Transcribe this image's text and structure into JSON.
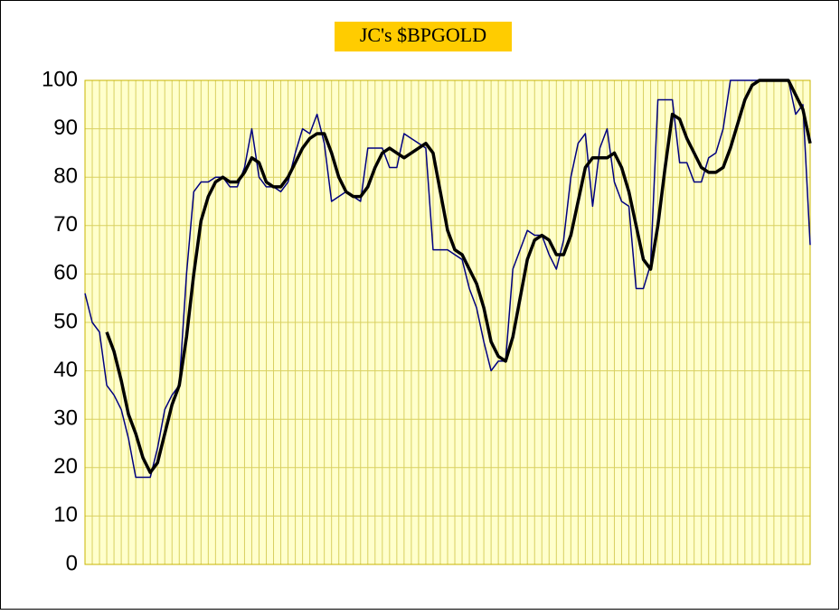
{
  "chart_data": {
    "type": "line",
    "title": "JC's $BPGOLD",
    "categories": [
      null,
      null,
      null,
      null,
      null,
      null,
      null,
      null,
      null,
      null,
      null,
      null,
      null,
      null,
      null,
      null,
      null,
      null,
      null,
      null,
      null,
      null,
      null,
      null,
      null,
      null,
      null,
      null,
      null,
      null,
      null,
      null,
      null,
      null,
      null,
      null,
      null,
      null,
      null,
      null,
      null,
      null,
      null,
      null,
      null,
      null,
      null,
      null,
      null,
      null,
      null,
      null,
      null,
      null,
      null,
      null,
      null,
      null,
      null,
      null,
      null,
      null,
      null,
      null,
      null,
      null,
      null,
      null,
      null,
      null,
      null,
      null,
      null,
      null,
      null,
      null,
      null,
      null,
      null,
      null,
      null,
      null,
      null,
      null,
      null,
      null,
      null,
      null,
      null,
      null,
      null,
      null,
      null,
      null,
      null,
      null,
      null,
      null,
      null,
      null,
      null
    ],
    "series": [
      {
        "color": "#000080",
        "width": 1.5,
        "values": [
          56,
          50,
          48,
          37,
          35,
          32,
          26,
          18,
          18,
          18,
          24,
          32,
          35,
          37,
          60,
          77,
          79,
          79,
          80,
          80,
          78,
          78,
          82,
          90,
          80,
          78,
          78,
          77,
          79,
          85,
          90,
          89,
          93,
          87,
          75,
          76,
          77,
          76,
          75,
          86,
          86,
          86,
          82,
          82,
          89,
          88,
          87,
          86,
          65,
          65,
          65,
          64,
          63,
          57,
          53,
          46,
          40,
          42,
          42,
          61,
          65,
          69,
          68,
          68,
          64,
          61,
          67,
          80,
          87,
          89,
          74,
          86,
          90,
          79,
          75,
          74,
          57,
          57,
          62,
          96,
          96,
          96,
          83,
          83,
          79,
          79,
          84,
          85,
          90,
          100,
          100,
          100,
          100,
          100,
          100,
          100,
          100,
          100,
          93,
          95,
          66
        ]
      },
      {
        "color": "#000000",
        "width": 3.5,
        "values": [
          null,
          null,
          null,
          48,
          44,
          38,
          31,
          27,
          22,
          19,
          21,
          27,
          33,
          37,
          47,
          60,
          71,
          76,
          79,
          80,
          79,
          79,
          81,
          84,
          83,
          79,
          78,
          78,
          80,
          83,
          86,
          88,
          89,
          89,
          85,
          80,
          77,
          76,
          76,
          78,
          82,
          85,
          86,
          85,
          84,
          85,
          86,
          87,
          85,
          77,
          69,
          65,
          64,
          61,
          58,
          53,
          46,
          43,
          42,
          47,
          55,
          63,
          67,
          68,
          67,
          64,
          64,
          68,
          75,
          82,
          84,
          84,
          84,
          85,
          82,
          77,
          70,
          63,
          61,
          70,
          82,
          93,
          92,
          88,
          85,
          82,
          81,
          81,
          82,
          86,
          91,
          96,
          99,
          100,
          100,
          100,
          100,
          100,
          97,
          94,
          87
        ]
      }
    ],
    "ylim": [
      0,
      100
    ],
    "yticks": [
      0,
      10,
      20,
      30,
      40,
      50,
      60,
      70,
      80,
      90,
      100
    ],
    "grid": true
  }
}
